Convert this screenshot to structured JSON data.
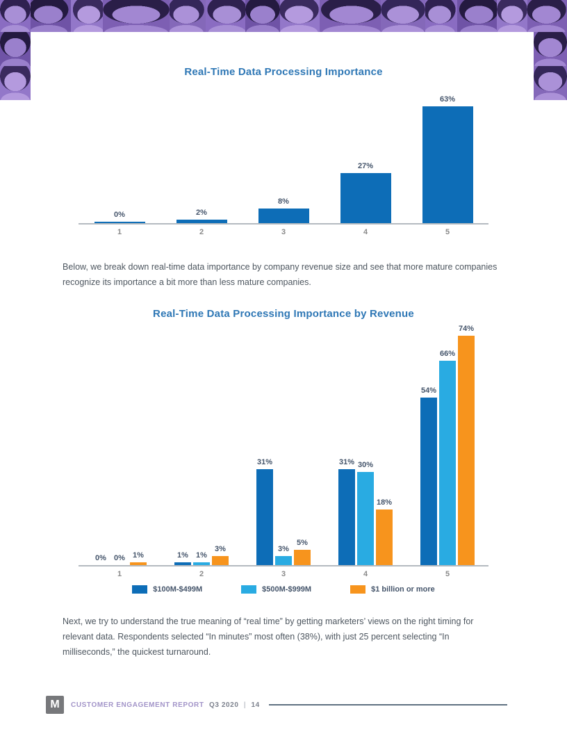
{
  "chart_data": [
    {
      "type": "bar",
      "title": "Real-Time Data Processing Importance",
      "categories": [
        "1",
        "2",
        "3",
        "4",
        "5"
      ],
      "values": [
        0,
        2,
        8,
        27,
        63
      ],
      "value_labels": [
        "0%",
        "2%",
        "8%",
        "27%",
        "63%"
      ],
      "bar_color": "#0d6db7",
      "xlabel": "",
      "ylabel": "",
      "ylim": [
        0,
        70
      ],
      "grid": false,
      "legend": null,
      "value_unit": "%"
    },
    {
      "type": "bar",
      "title": "Real-Time Data Processing Importance by Revenue",
      "categories": [
        "1",
        "2",
        "3",
        "4",
        "5"
      ],
      "series": [
        {
          "name": "$100M-$499M",
          "color": "#0d6db7",
          "values": [
            0,
            1,
            31,
            31,
            54
          ]
        },
        {
          "name": "$500M-$999M",
          "color": "#29abe2",
          "values": [
            0,
            1,
            3,
            30,
            66
          ]
        },
        {
          "name": "$1 billion or more",
          "color": "#f7941d",
          "values": [
            1,
            3,
            5,
            18,
            74
          ]
        }
      ],
      "xlabel": "",
      "ylabel": "",
      "ylim": [
        0,
        80
      ],
      "grid": false,
      "legend_position": "bottom",
      "value_unit": "%"
    }
  ],
  "paragraphs": {
    "between_charts": "Below, we break down real-time data importance by company revenue size and see that more mature companies recognize its importance a bit more than less mature companies.",
    "after_charts": "Next, we try to understand the true meaning of “real time” by getting marketers’ views on the right timing for relevant data. Respondents selected “In minutes” most often (38%), with just 25 percent selecting “In milliseconds,” the quickest turnaround."
  },
  "footer": {
    "logo_letter": "M",
    "report_name": "CUSTOMER ENGAGEMENT REPORT",
    "edition": "Q3 2020",
    "separator": "|",
    "page_number": "14"
  },
  "colors": {
    "title_blue": "#2e77b5",
    "bar_dark_blue": "#0d6db7",
    "bar_cyan": "#29abe2",
    "bar_orange": "#f7941d",
    "data_label": "#44546a",
    "tick_gray": "#8a8a8a",
    "axis_gray": "#b4bac0",
    "banner_purple": "#8166b4",
    "footer_purple": "#a294c8",
    "footer_gray": "#7d828e",
    "footer_rule": "#5f7181"
  }
}
